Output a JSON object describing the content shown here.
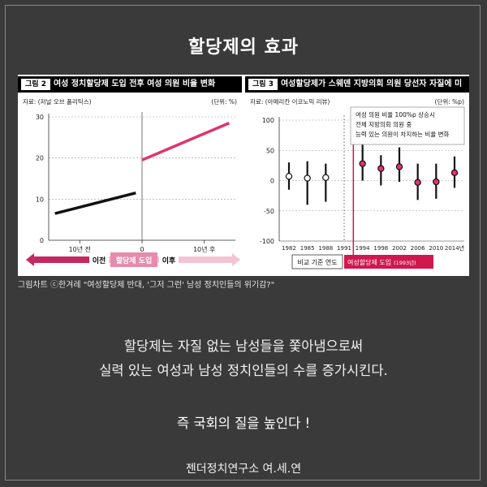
{
  "title": "할당제의 효과",
  "figure1": {
    "tag": "그림 2",
    "header": "여성 정치할당제 도입 전후 여성 의원 비율 변화",
    "source": "자료: (저널 오브 폴리틱스)",
    "unit": "(단위: %)",
    "y_ticks": [
      "30",
      "20",
      "10",
      "0"
    ],
    "x_ticks": [
      "10년 전",
      "0",
      "10년 후"
    ],
    "arrow_before": "이전",
    "arrow_center": "할당제 도입",
    "arrow_after": "이후",
    "colors": {
      "before": "#111111",
      "after": "#e0336b",
      "arrow": "#c42a5f"
    }
  },
  "figure2": {
    "tag": "그림 3",
    "header": "여성할당제가 스웨덴 지방의회 의원 당선자 자질에 미친 효과",
    "source": "자료: (아메리칸 이코노믹 리뷰)",
    "unit": "(단위: %p)",
    "y_ticks": [
      "100",
      "50",
      "0",
      "-50",
      "-100"
    ],
    "x_ticks": [
      "1982",
      "1985",
      "1988",
      "1991",
      "1994",
      "1998",
      "2002",
      "2006",
      "2010",
      "2014년"
    ],
    "annotation": [
      "여성 의원 비율 100%p 상승시",
      "전체 지방의회 의원 중",
      "능력 있는 의원이 차지하는 비율 변화"
    ],
    "label_compare": "비교 기준 연도",
    "label_intro": "여성할당제 도입",
    "label_intro_year": "(1993년)",
    "colors": {
      "marker_before": "#ffffff",
      "marker_after": "#e0336b",
      "vline": "#d0174e"
    }
  },
  "chart_data": [
    {
      "type": "line",
      "title": "여성 정치할당제 도입 전후 여성 의원 비율 변화",
      "xlabel": "",
      "ylabel": "(단위: %)",
      "ylim": [
        0,
        30
      ],
      "xlim": [
        -15,
        15
      ],
      "series": [
        {
          "name": "이전",
          "x": [
            -14,
            -1
          ],
          "values": [
            6.5,
            11.5
          ]
        },
        {
          "name": "이후",
          "x": [
            0,
            14
          ],
          "values": [
            19.5,
            28.5
          ]
        }
      ]
    },
    {
      "type": "scatter",
      "title": "여성할당제가 스웨덴 지방의회 의원 당선자 자질에 미친 효과",
      "xlabel": "",
      "ylabel": "(단위: %p)",
      "ylim": [
        -100,
        100
      ],
      "categories": [
        "1982",
        "1985",
        "1988",
        "1991",
        "1994",
        "1998",
        "2002",
        "2006",
        "2010",
        "2014"
      ],
      "values": [
        7,
        4,
        5,
        null,
        28,
        20,
        23,
        -3,
        -2,
        13
      ],
      "ci_low": [
        -15,
        -40,
        -35,
        null,
        0,
        -8,
        -2,
        -32,
        -30,
        -12
      ],
      "ci_high": [
        30,
        32,
        28,
        null,
        62,
        42,
        55,
        28,
        28,
        40
      ]
    }
  ],
  "caption": "그림차트 ⓒ한겨레 \"여성할당제 반대, '그저 그런' 남성 정치인들의 위기감?\"",
  "body": [
    "할당제는 자질 없는 남성들을 쫓아냄으로써",
    "실력 있는 여성과 남성 정치인들의 수를 증가시킨다."
  ],
  "conclusion": "즉 국회의 질을 높인다 !",
  "footer": "젠더정치연구소 여.세.연"
}
